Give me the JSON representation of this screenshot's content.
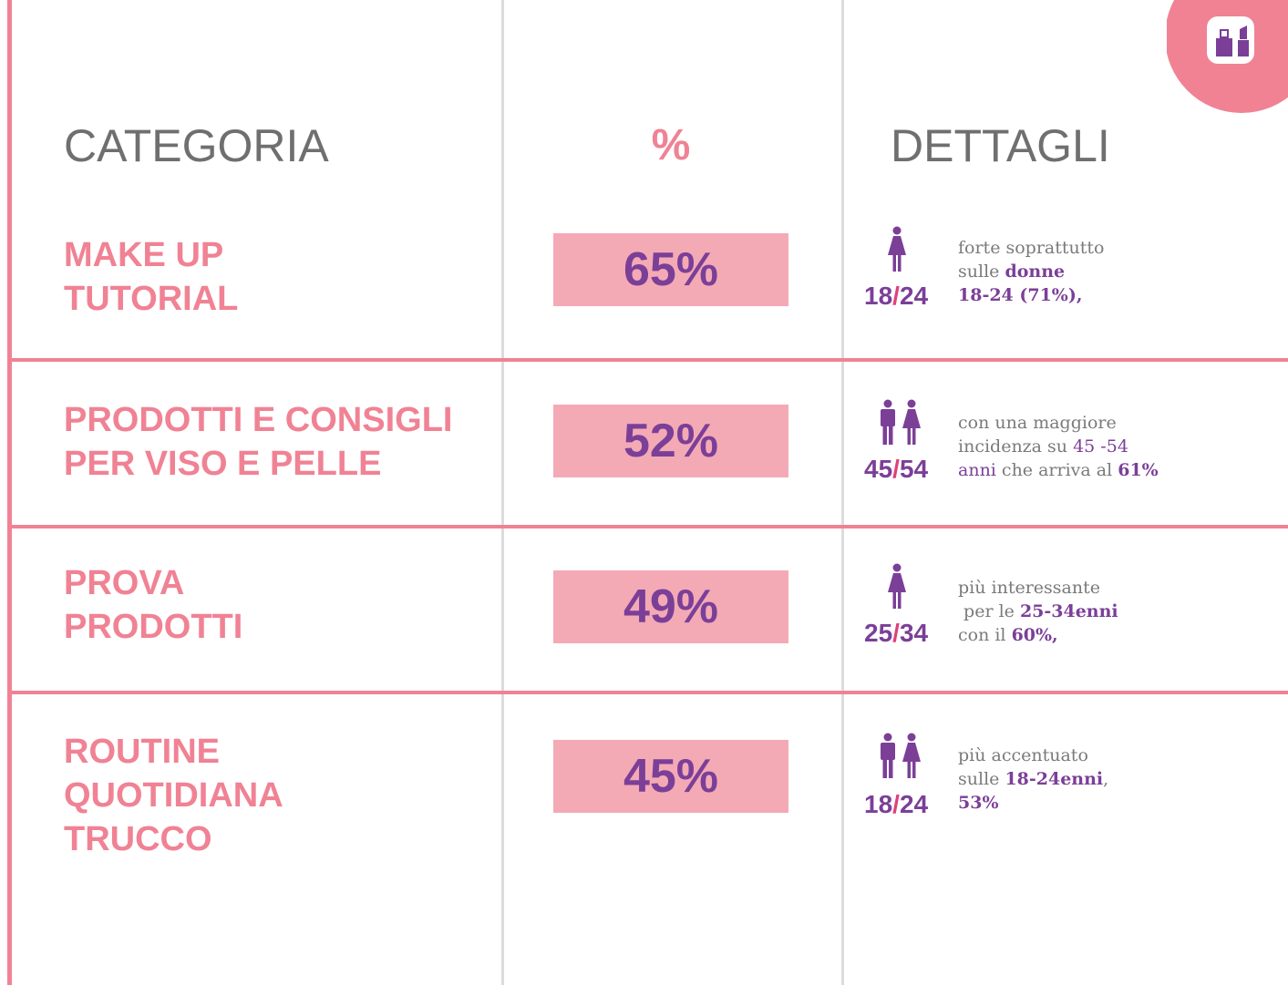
{
  "header": {
    "columns": [
      "CATEGORIA",
      "%",
      "DETTAGLI"
    ]
  },
  "rows": [
    {
      "category": [
        "MAKE UP",
        "TUTORIAL"
      ],
      "percent": "65%",
      "age": [
        "18",
        "/",
        "24"
      ],
      "details": [
        [
          "forte soprattutto"
        ],
        [
          "sulle ",
          "donne"
        ],
        [
          "18-24 (71%),"
        ]
      ]
    },
    {
      "category": [
        "PRODOTTI E CONSIGLI",
        "PER VISO E PELLE"
      ],
      "percent": "52%",
      "age": [
        "45",
        "/",
        "54"
      ],
      "details": [
        [
          "con una maggiore"
        ],
        [
          "incidenza su ",
          "45 -54"
        ],
        [
          "anni",
          " che arriva al ",
          "61%"
        ]
      ]
    },
    {
      "category": [
        "PROVA",
        "PRODOTTI"
      ],
      "percent": "49%",
      "age": [
        "25",
        "/",
        "34"
      ],
      "details": [
        [
          "più interessante"
        ],
        [
          " per le ",
          "25-34enni"
        ],
        [
          "con il ",
          "60%,"
        ]
      ]
    },
    {
      "category": [
        "ROUTINE",
        "QUOTIDIANA",
        "TRUCCO"
      ],
      "percent": "45%",
      "age": [
        "18",
        "/",
        "24"
      ],
      "details": [
        [
          "più accentuato"
        ],
        [
          "sulle ",
          "18-24enni",
          ","
        ],
        [
          "53%"
        ]
      ]
    }
  ]
}
